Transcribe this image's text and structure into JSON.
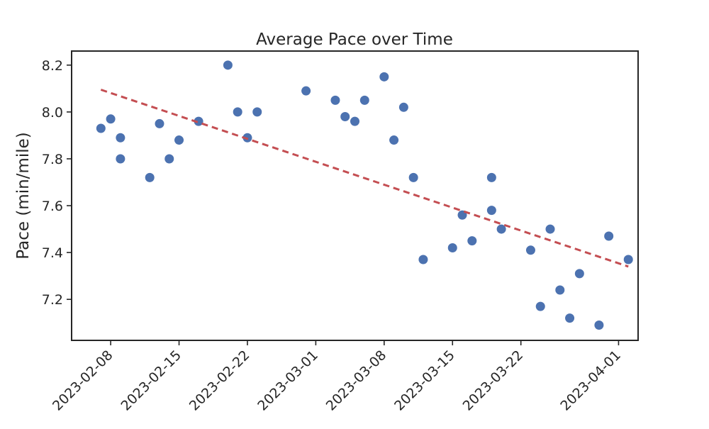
{
  "chart_data": {
    "type": "scatter",
    "title": "Average Pace over Time",
    "xlabel": "",
    "ylabel": "Pace (min/mile)",
    "x_type": "date",
    "xlim": [
      "2023-02-04",
      "2023-04-03"
    ],
    "ylim": [
      7.025,
      8.26
    ],
    "x_ticks": [
      "2023-02-08",
      "2023-02-15",
      "2023-02-22",
      "2023-03-01",
      "2023-03-08",
      "2023-03-15",
      "2023-03-22",
      "2023-04-01"
    ],
    "y_ticks": [
      7.2,
      7.4,
      7.6,
      7.8,
      8.0,
      8.2
    ],
    "y_tick_labels": [
      "7.2",
      "7.4",
      "7.6",
      "7.8",
      "8.0",
      "8.2"
    ],
    "grid": false,
    "colors": {
      "points": "#4c72b0",
      "trend": "#c44e52",
      "axes": "#262626"
    },
    "series": [
      {
        "kind": "scatter",
        "points": [
          {
            "x": "2023-02-07",
            "y": 7.93
          },
          {
            "x": "2023-02-08",
            "y": 7.97
          },
          {
            "x": "2023-02-09",
            "y": 7.89
          },
          {
            "x": "2023-02-09",
            "y": 7.8
          },
          {
            "x": "2023-02-12",
            "y": 7.72
          },
          {
            "x": "2023-02-13",
            "y": 7.95
          },
          {
            "x": "2023-02-14",
            "y": 7.8
          },
          {
            "x": "2023-02-15",
            "y": 7.88
          },
          {
            "x": "2023-02-17",
            "y": 7.96
          },
          {
            "x": "2023-02-20",
            "y": 8.2
          },
          {
            "x": "2023-02-21",
            "y": 8.0
          },
          {
            "x": "2023-02-22",
            "y": 7.89
          },
          {
            "x": "2023-02-23",
            "y": 8.0
          },
          {
            "x": "2023-02-28",
            "y": 8.09
          },
          {
            "x": "2023-03-03",
            "y": 8.05
          },
          {
            "x": "2023-03-04",
            "y": 7.98
          },
          {
            "x": "2023-03-05",
            "y": 7.96
          },
          {
            "x": "2023-03-06",
            "y": 8.05
          },
          {
            "x": "2023-03-08",
            "y": 8.15
          },
          {
            "x": "2023-03-09",
            "y": 7.88
          },
          {
            "x": "2023-03-10",
            "y": 8.02
          },
          {
            "x": "2023-03-11",
            "y": 7.72
          },
          {
            "x": "2023-03-12",
            "y": 7.37
          },
          {
            "x": "2023-03-15",
            "y": 7.42
          },
          {
            "x": "2023-03-16",
            "y": 7.56
          },
          {
            "x": "2023-03-17",
            "y": 7.45
          },
          {
            "x": "2023-03-19",
            "y": 7.58
          },
          {
            "x": "2023-03-19",
            "y": 7.72
          },
          {
            "x": "2023-03-20",
            "y": 7.5
          },
          {
            "x": "2023-03-23",
            "y": 7.41
          },
          {
            "x": "2023-03-24",
            "y": 7.17
          },
          {
            "x": "2023-03-25",
            "y": 7.5
          },
          {
            "x": "2023-03-26",
            "y": 7.24
          },
          {
            "x": "2023-03-27",
            "y": 7.12
          },
          {
            "x": "2023-03-28",
            "y": 7.31
          },
          {
            "x": "2023-03-30",
            "y": 7.09
          },
          {
            "x": "2023-03-31",
            "y": 7.47
          },
          {
            "x": "2023-04-02",
            "y": 7.37
          }
        ]
      },
      {
        "kind": "trend-line",
        "style": "dashed",
        "points": [
          {
            "x": "2023-02-07",
            "y": 8.095
          },
          {
            "x": "2023-04-02",
            "y": 7.34
          }
        ]
      }
    ]
  }
}
